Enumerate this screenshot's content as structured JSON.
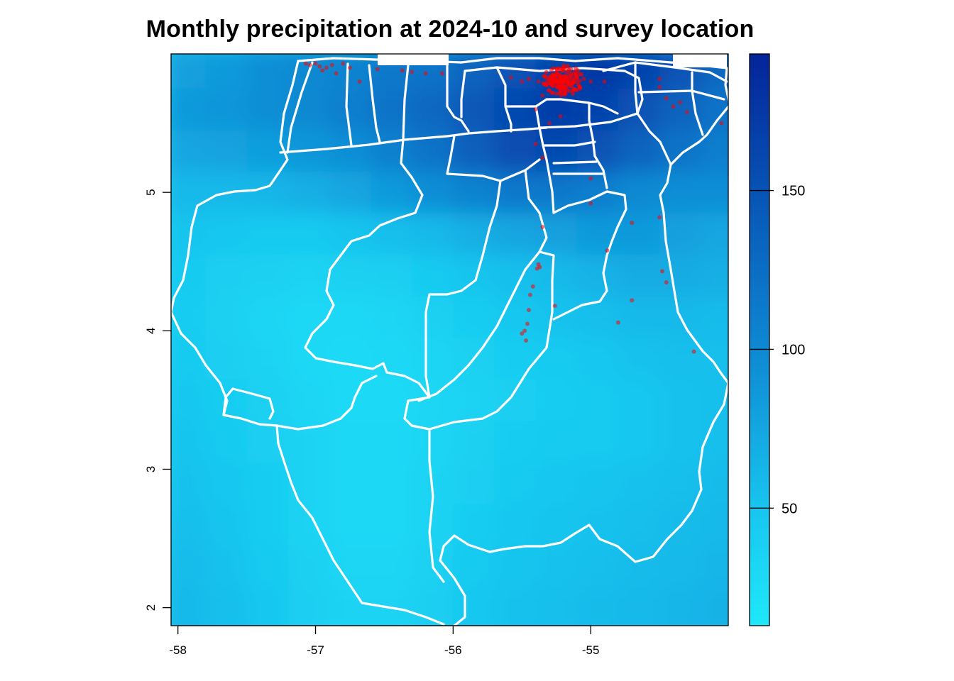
{
  "title": "Monthly precipitation at 2024-10 and survey location",
  "x_axis": {
    "ticks": [
      {
        "value": -58,
        "label": "-58"
      },
      {
        "value": -57,
        "label": "-57"
      },
      {
        "value": -56,
        "label": "-56"
      },
      {
        "value": -55,
        "label": "-55"
      }
    ],
    "range": [
      -58.05,
      -54.0
    ]
  },
  "y_axis": {
    "ticks": [
      {
        "value": 2,
        "label": "2"
      },
      {
        "value": 3,
        "label": "3"
      },
      {
        "value": 4,
        "label": "4"
      },
      {
        "value": 5,
        "label": "5"
      }
    ],
    "range": [
      1.87,
      6.0
    ]
  },
  "legend": {
    "ticks": [
      {
        "value": 50,
        "label": "50"
      },
      {
        "value": 100,
        "label": "100"
      },
      {
        "value": 150,
        "label": "150"
      }
    ],
    "range": [
      13,
      193
    ],
    "color_low": "#1fe8fa",
    "color_mid": "#0f8fd6",
    "color_high": "#04249a"
  },
  "colors": {
    "boundary": "#ffffff",
    "survey_point": "#ff0000",
    "background": "#ffffff"
  },
  "chart_data": {
    "type": "heatmap",
    "title": "Monthly precipitation at 2024-10 and survey location",
    "xlabel": "",
    "ylabel": "",
    "xlim": [
      -58.05,
      -54.0
    ],
    "ylim": [
      1.87,
      6.0
    ],
    "color_scale": {
      "min": 13,
      "max": 193,
      "ticks": [
        50,
        100,
        150
      ]
    },
    "precipitation_field": {
      "lon_step": 0.3,
      "lat_step": 0.3,
      "description_values_north_to_south": "high (~140-180) along northern coast, lowest (~20-35) in south-central interior",
      "sample_grid": [
        {
          "lat": 5.85,
          "values": [
            80,
            85,
            95,
            100,
            105,
            115,
            120,
            135,
            150,
            165,
            175,
            165,
            150,
            130
          ]
        },
        {
          "lat": 5.55,
          "values": [
            85,
            88,
            95,
            100,
            110,
            120,
            130,
            145,
            160,
            170,
            165,
            150,
            135,
            120
          ]
        },
        {
          "lat": 5.25,
          "values": [
            75,
            78,
            82,
            88,
            95,
            108,
            120,
            140,
            155,
            160,
            150,
            135,
            120,
            110
          ]
        },
        {
          "lat": 4.95,
          "values": [
            60,
            60,
            62,
            68,
            75,
            85,
            95,
            105,
            115,
            115,
            110,
            100,
            95,
            95
          ]
        },
        {
          "lat": 4.65,
          "values": [
            50,
            48,
            45,
            45,
            50,
            55,
            60,
            68,
            75,
            80,
            85,
            85,
            80,
            75
          ]
        },
        {
          "lat": 4.35,
          "values": [
            45,
            40,
            38,
            35,
            38,
            40,
            45,
            50,
            55,
            60,
            65,
            70,
            70,
            68
          ]
        },
        {
          "lat": 4.05,
          "values": [
            42,
            38,
            33,
            30,
            30,
            32,
            38,
            42,
            48,
            52,
            55,
            60,
            60,
            58
          ]
        },
        {
          "lat": 3.75,
          "values": [
            45,
            40,
            35,
            30,
            28,
            30,
            33,
            38,
            42,
            45,
            48,
            52,
            55,
            55
          ]
        },
        {
          "lat": 3.45,
          "values": [
            48,
            42,
            38,
            32,
            28,
            28,
            32,
            35,
            40,
            42,
            45,
            48,
            52,
            55
          ]
        },
        {
          "lat": 3.15,
          "values": [
            50,
            45,
            40,
            35,
            30,
            30,
            33,
            38,
            42,
            45,
            45,
            48,
            52,
            55
          ]
        },
        {
          "lat": 2.85,
          "values": [
            52,
            48,
            42,
            35,
            30,
            30,
            35,
            40,
            45,
            48,
            50,
            52,
            55,
            58
          ]
        },
        {
          "lat": 2.55,
          "values": [
            55,
            50,
            42,
            35,
            30,
            30,
            35,
            42,
            48,
            50,
            52,
            55,
            58,
            60
          ]
        },
        {
          "lat": 2.25,
          "values": [
            58,
            52,
            45,
            38,
            32,
            32,
            38,
            45,
            50,
            52,
            55,
            58,
            60,
            62
          ]
        },
        {
          "lat": 1.95,
          "values": [
            60,
            55,
            48,
            40,
            35,
            35,
            40,
            48,
            52,
            55,
            58,
            60,
            62,
            65
          ]
        }
      ]
    },
    "survey_points": [
      {
        "lon": -57.07,
        "lat": 5.93
      },
      {
        "lon": -57.04,
        "lat": 5.92
      },
      {
        "lon": -57.0,
        "lat": 5.93
      },
      {
        "lon": -56.97,
        "lat": 5.91
      },
      {
        "lon": -56.95,
        "lat": 5.88
      },
      {
        "lon": -56.92,
        "lat": 5.9
      },
      {
        "lon": -56.88,
        "lat": 5.92
      },
      {
        "lon": -56.85,
        "lat": 5.86
      },
      {
        "lon": -56.8,
        "lat": 5.93
      },
      {
        "lon": -56.75,
        "lat": 5.9
      },
      {
        "lon": -56.68,
        "lat": 5.8
      },
      {
        "lon": -56.55,
        "lat": 5.89
      },
      {
        "lon": -56.37,
        "lat": 5.88
      },
      {
        "lon": -56.3,
        "lat": 5.87
      },
      {
        "lon": -56.2,
        "lat": 5.86
      },
      {
        "lon": -56.08,
        "lat": 5.86
      },
      {
        "lon": -55.58,
        "lat": 5.83
      },
      {
        "lon": -55.5,
        "lat": 5.8
      },
      {
        "lon": -55.45,
        "lat": 5.82
      },
      {
        "lon": -55.38,
        "lat": 5.8
      },
      {
        "lon": -55.3,
        "lat": 5.83
      },
      {
        "lon": -55.25,
        "lat": 5.85
      },
      {
        "lon": -55.22,
        "lat": 5.8
      },
      {
        "lon": -55.2,
        "lat": 5.78
      },
      {
        "lon": -55.18,
        "lat": 5.82
      },
      {
        "lon": -55.23,
        "lat": 5.75
      },
      {
        "lon": -55.27,
        "lat": 5.77
      },
      {
        "lon": -55.15,
        "lat": 5.86
      },
      {
        "lon": -55.12,
        "lat": 5.8
      },
      {
        "lon": -55.28,
        "lat": 5.85
      },
      {
        "lon": -55.2,
        "lat": 5.88
      },
      {
        "lon": -55.1,
        "lat": 5.84
      },
      {
        "lon": -55.05,
        "lat": 5.82
      },
      {
        "lon": -55.0,
        "lat": 5.8
      },
      {
        "lon": -54.9,
        "lat": 5.8
      },
      {
        "lon": -55.35,
        "lat": 5.7
      },
      {
        "lon": -55.4,
        "lat": 5.6
      },
      {
        "lon": -55.3,
        "lat": 5.5
      },
      {
        "lon": -55.22,
        "lat": 5.55
      },
      {
        "lon": -55.35,
        "lat": 5.25
      },
      {
        "lon": -55.4,
        "lat": 5.35
      },
      {
        "lon": -55.0,
        "lat": 5.1
      },
      {
        "lon": -55.35,
        "lat": 4.75
      },
      {
        "lon": -55.38,
        "lat": 4.48
      },
      {
        "lon": -55.39,
        "lat": 4.45
      },
      {
        "lon": -55.37,
        "lat": 4.46
      },
      {
        "lon": -55.42,
        "lat": 4.32
      },
      {
        "lon": -55.44,
        "lat": 4.26
      },
      {
        "lon": -55.45,
        "lat": 4.15
      },
      {
        "lon": -55.46,
        "lat": 4.05
      },
      {
        "lon": -55.48,
        "lat": 4.0
      },
      {
        "lon": -55.5,
        "lat": 3.98
      },
      {
        "lon": -55.47,
        "lat": 3.93
      },
      {
        "lon": -55.26,
        "lat": 4.18
      },
      {
        "lon": -55.0,
        "lat": 4.92
      },
      {
        "lon": -54.88,
        "lat": 4.58
      },
      {
        "lon": -54.8,
        "lat": 4.06
      },
      {
        "lon": -54.7,
        "lat": 4.22
      },
      {
        "lon": -54.7,
        "lat": 4.78
      },
      {
        "lon": -54.5,
        "lat": 4.82
      },
      {
        "lon": -54.48,
        "lat": 4.43
      },
      {
        "lon": -54.45,
        "lat": 4.35
      },
      {
        "lon": -54.5,
        "lat": 5.76
      },
      {
        "lon": -54.45,
        "lat": 5.68
      },
      {
        "lon": -54.4,
        "lat": 5.62
      },
      {
        "lon": -54.35,
        "lat": 5.65
      },
      {
        "lon": -54.3,
        "lat": 5.58
      },
      {
        "lon": -54.5,
        "lat": 5.82
      },
      {
        "lon": -54.05,
        "lat": 5.5
      },
      {
        "lon": -54.25,
        "lat": 3.85
      }
    ]
  }
}
